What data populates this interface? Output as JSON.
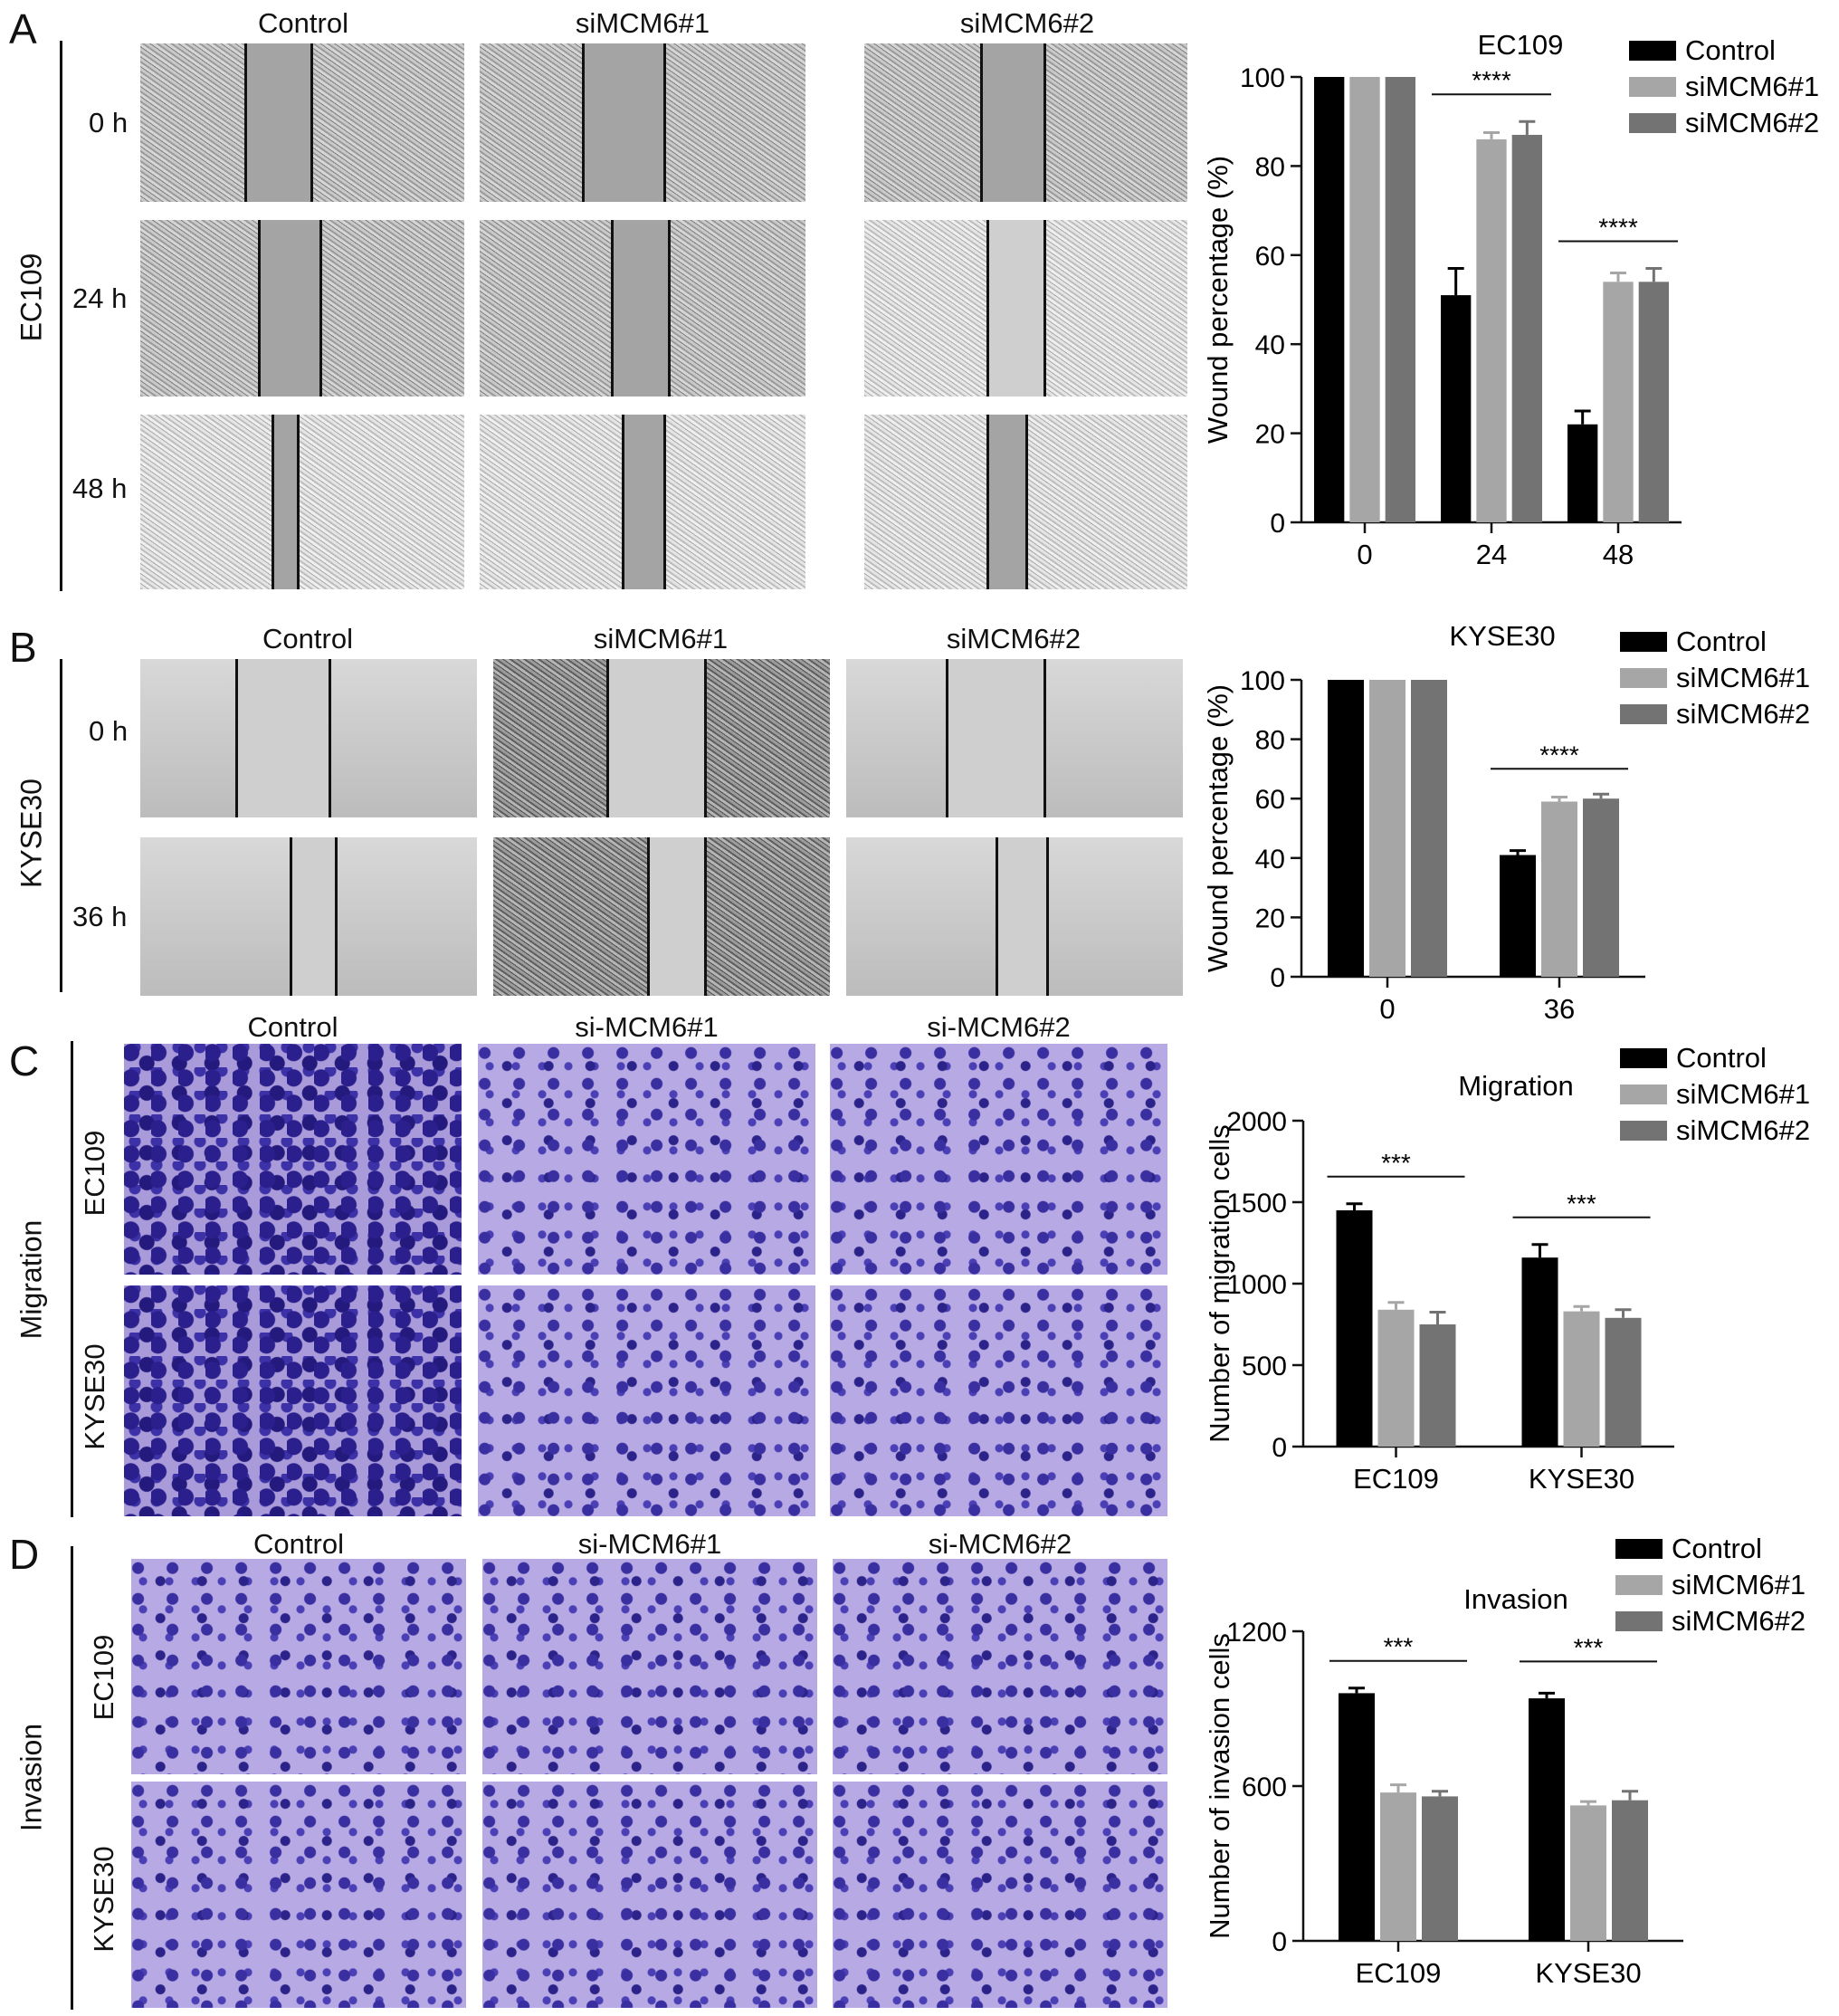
{
  "panelA": {
    "letter": "A",
    "row_title": "EC109",
    "columns": [
      "Control",
      "siMCM6#1",
      "siMCM6#2"
    ],
    "rows": [
      "0 h",
      "24 h",
      "48 h"
    ]
  },
  "panelB": {
    "letter": "B",
    "row_title": "KYSE30",
    "columns": [
      "Control",
      "siMCM6#1",
      "siMCM6#2"
    ],
    "rows": [
      "0 h",
      "36 h"
    ]
  },
  "panelC": {
    "letter": "C",
    "row_title": "Migration",
    "columns": [
      "Control",
      "si-MCM6#1",
      "si-MCM6#2"
    ],
    "rows": [
      "EC109",
      "KYSE30"
    ]
  },
  "panelD": {
    "letter": "D",
    "row_title": "Invasion",
    "columns": [
      "Control",
      "si-MCM6#1",
      "si-MCM6#2"
    ],
    "rows": [
      "EC109",
      "KYSE30"
    ]
  },
  "colors": {
    "control": "#000000",
    "si1": "#a6a6a6",
    "si2": "#737373"
  },
  "chart_data": [
    {
      "id": "chartA",
      "type": "bar",
      "title": "EC109",
      "xlabel": "",
      "ylabel": "Wound percentage (%)",
      "categories": [
        "0",
        "24",
        "48"
      ],
      "ylim": [
        0,
        100
      ],
      "yticks": [
        0,
        20,
        40,
        60,
        80,
        100
      ],
      "series": [
        {
          "name": "Control",
          "values": [
            100,
            51,
            22
          ],
          "errors": [
            0,
            6,
            3
          ]
        },
        {
          "name": "siMCM6#1",
          "values": [
            100,
            86,
            54
          ],
          "errors": [
            0,
            1.5,
            2
          ]
        },
        {
          "name": "siMCM6#2",
          "values": [
            100,
            87,
            54
          ],
          "errors": [
            0,
            3,
            3
          ]
        }
      ],
      "significance": [
        {
          "category": 1,
          "label": "****"
        },
        {
          "category": 2,
          "label": "****"
        }
      ],
      "legend": "top-right"
    },
    {
      "id": "chartB",
      "type": "bar",
      "title": "KYSE30",
      "xlabel": "",
      "ylabel": "Wound percentage (%)",
      "categories": [
        "0",
        "36"
      ],
      "ylim": [
        0,
        100
      ],
      "yticks": [
        0,
        20,
        40,
        60,
        80,
        100
      ],
      "series": [
        {
          "name": "Control",
          "values": [
            100,
            41
          ],
          "errors": [
            0,
            1.5
          ]
        },
        {
          "name": "siMCM6#1",
          "values": [
            100,
            59
          ],
          "errors": [
            0,
            1.5
          ]
        },
        {
          "name": "siMCM6#2",
          "values": [
            100,
            60
          ],
          "errors": [
            0,
            1.5
          ]
        }
      ],
      "significance": [
        {
          "category": 1,
          "label": "****"
        }
      ],
      "legend": "top-right"
    },
    {
      "id": "chartC",
      "type": "bar",
      "title": "Migration",
      "xlabel": "",
      "ylabel": "Number of migration cells",
      "categories": [
        "EC109",
        "KYSE30"
      ],
      "ylim": [
        0,
        2000
      ],
      "yticks": [
        0,
        500,
        1000,
        1500,
        2000
      ],
      "series": [
        {
          "name": "Control",
          "values": [
            1450,
            1160
          ],
          "errors": [
            40,
            80
          ]
        },
        {
          "name": "siMCM6#1",
          "values": [
            840,
            830
          ],
          "errors": [
            45,
            30
          ]
        },
        {
          "name": "siMCM6#2",
          "values": [
            750,
            790
          ],
          "errors": [
            75,
            50
          ]
        }
      ],
      "significance": [
        {
          "category": 0,
          "label": "***"
        },
        {
          "category": 1,
          "label": "***"
        }
      ],
      "legend": "top-right"
    },
    {
      "id": "chartD",
      "type": "bar",
      "title": "Invasion",
      "xlabel": "",
      "ylabel": "Number of invasion cells",
      "categories": [
        "EC109",
        "KYSE30"
      ],
      "ylim": [
        0,
        1200
      ],
      "yticks": [
        0,
        600,
        1200
      ],
      "series": [
        {
          "name": "Control",
          "values": [
            960,
            940
          ],
          "errors": [
            20,
            20
          ]
        },
        {
          "name": "siMCM6#1",
          "values": [
            575,
            525
          ],
          "errors": [
            30,
            15
          ]
        },
        {
          "name": "siMCM6#2",
          "values": [
            560,
            545
          ],
          "errors": [
            20,
            35
          ]
        }
      ],
      "significance": [
        {
          "category": 0,
          "label": "***"
        },
        {
          "category": 1,
          "label": "***"
        }
      ],
      "legend": "top-right"
    }
  ]
}
